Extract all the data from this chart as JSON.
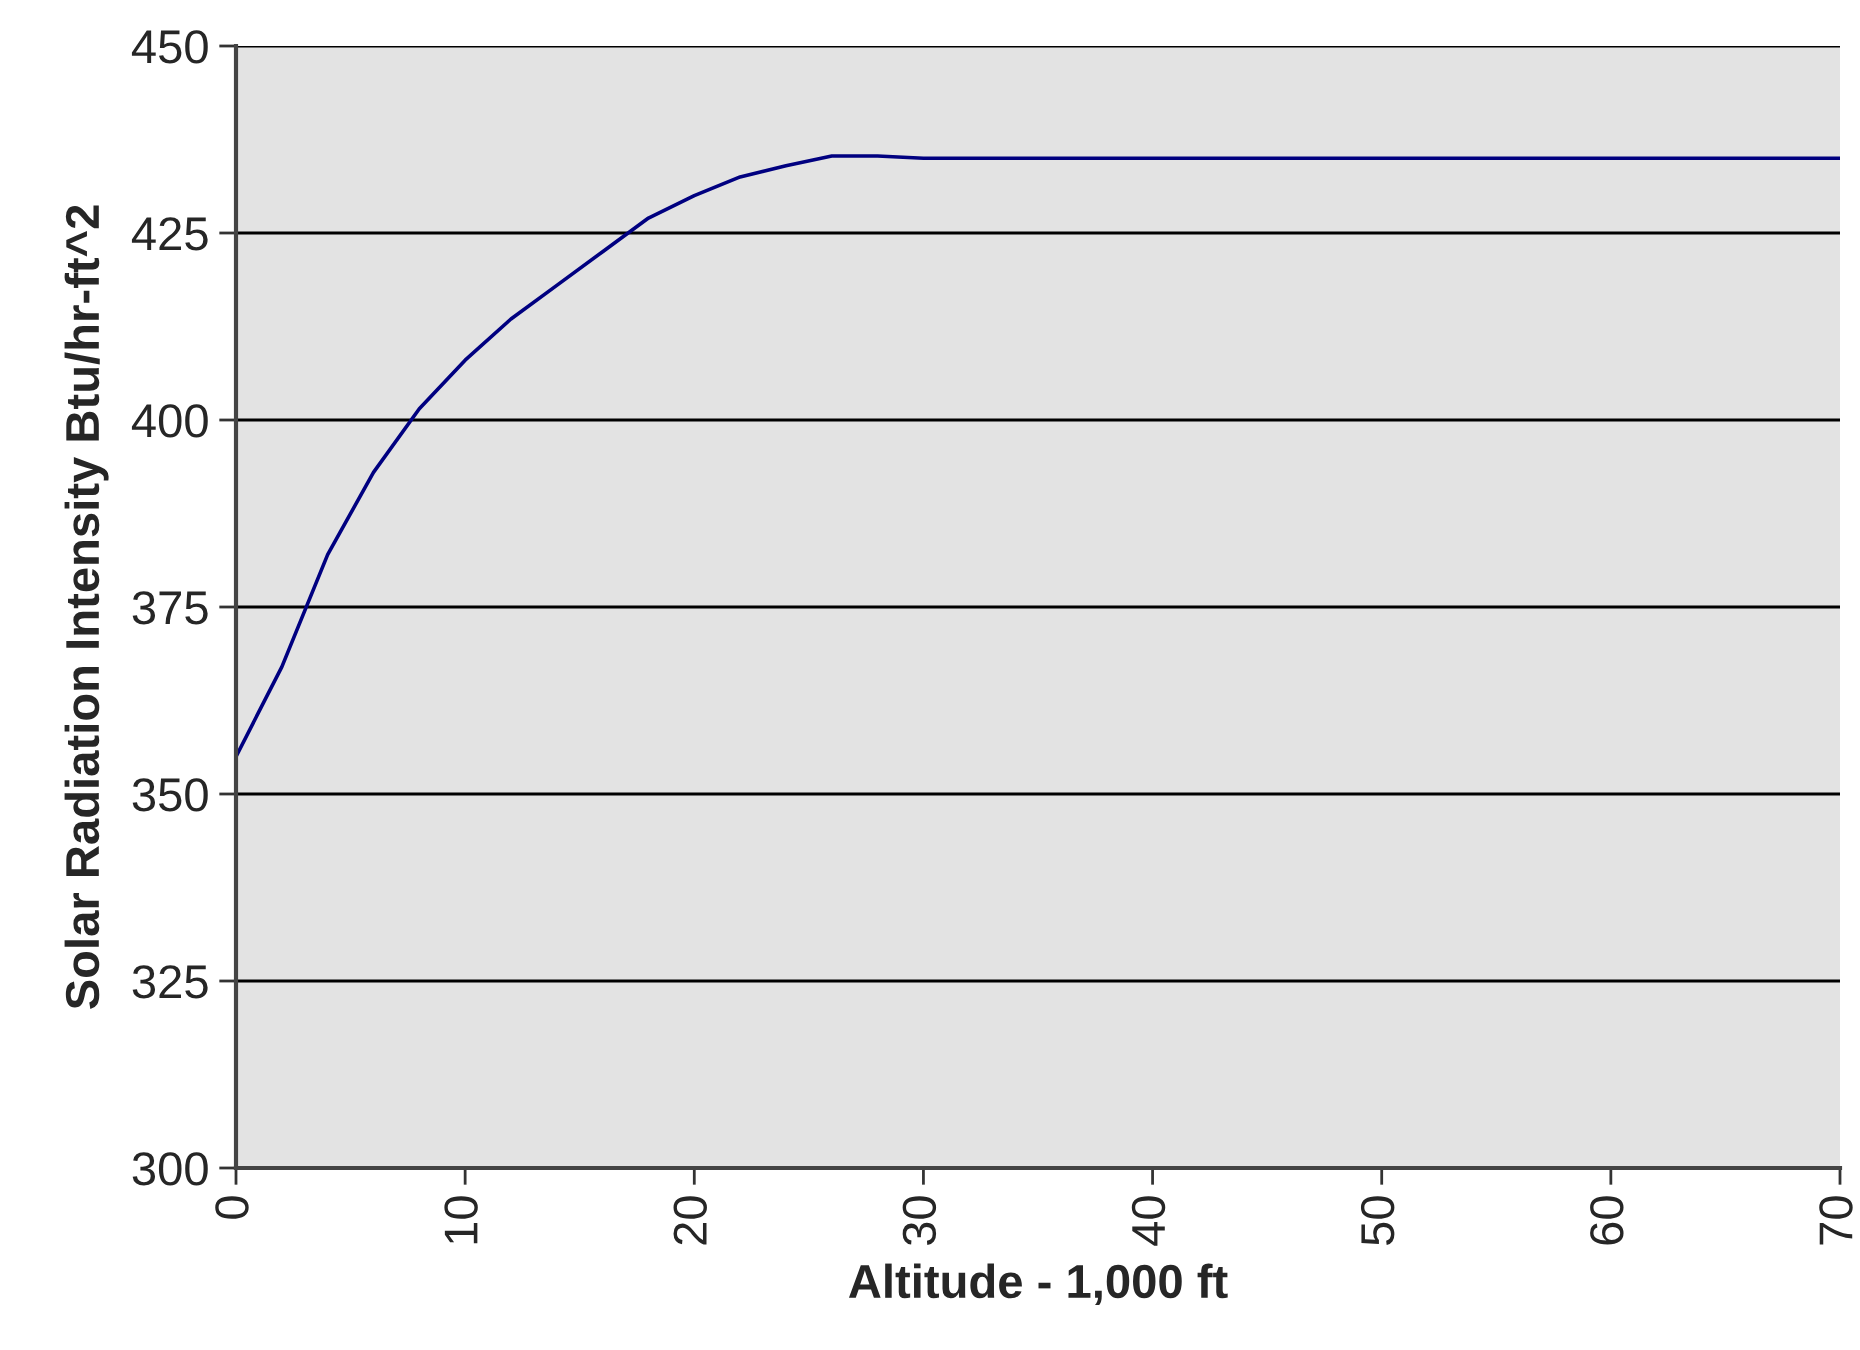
{
  "chart_data": {
    "type": "line",
    "xlabel": "Altitude - 1,000 ft",
    "ylabel": "Solar Radiation Intensity Btu/hr-ft^2",
    "x": [
      0,
      2,
      4,
      6,
      8,
      10,
      12,
      14,
      16,
      18,
      20,
      22,
      24,
      26,
      28,
      30,
      35,
      40,
      45,
      50,
      55,
      60,
      65,
      70
    ],
    "series": [
      {
        "color": "#000080",
        "values": [
          355,
          367,
          382,
          393,
          401.5,
          408,
          413.5,
          418,
          422.5,
          427,
          430,
          432.5,
          434,
          435.3,
          435.3,
          435,
          435,
          435,
          435,
          435,
          435,
          435,
          435,
          435
        ]
      }
    ],
    "xlim": [
      0,
      70
    ],
    "xticks": [
      0,
      10,
      20,
      30,
      40,
      50,
      60,
      70
    ],
    "ylim": [
      300,
      450
    ],
    "yticks": [
      300,
      325,
      350,
      375,
      400,
      425,
      450
    ],
    "grid": "y",
    "legend": false
  }
}
